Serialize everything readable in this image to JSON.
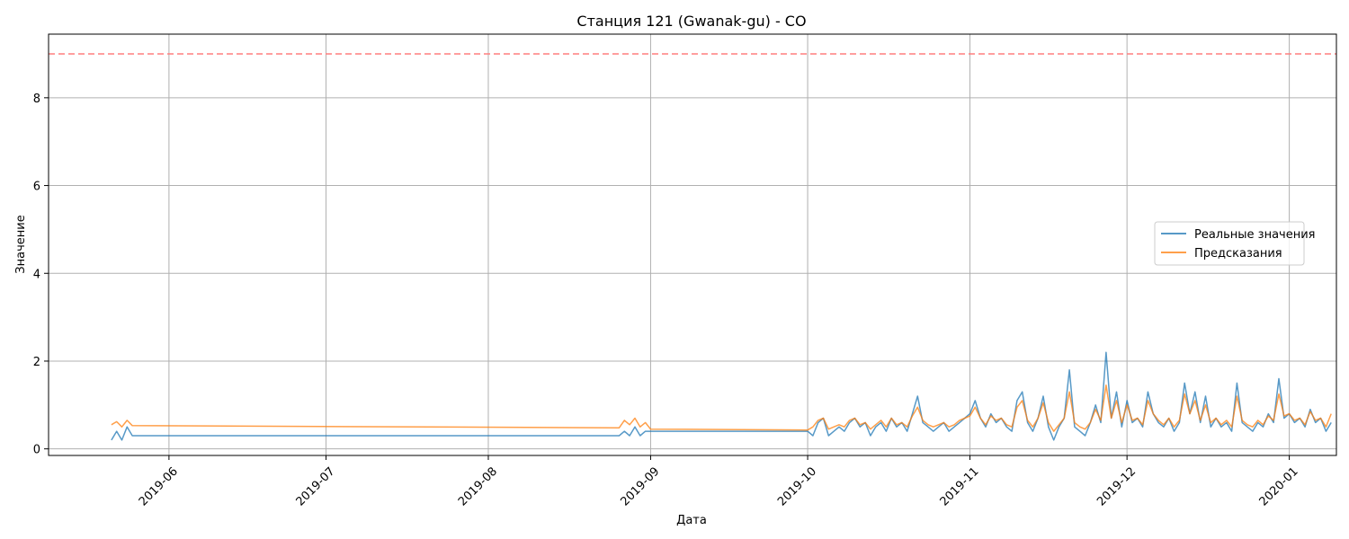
{
  "chart_data": {
    "type": "line",
    "title": "Станция 121 (Gwanak-gu) - CO",
    "xlabel": "Дата",
    "ylabel": "Значение",
    "x_range": [
      "2019-05-09",
      "2020-01-10"
    ],
    "ylim": [
      -0.15,
      9.45
    ],
    "grid": true,
    "legend_position": "center-right",
    "x_ticks": [
      "2019-06-01",
      "2019-07-01",
      "2019-08-01",
      "2019-09-01",
      "2019-10-01",
      "2019-11-01",
      "2019-12-01",
      "2020-01-01"
    ],
    "x_tick_labels": [
      "2019-06",
      "2019-07",
      "2019-08",
      "2019-09",
      "2019-10",
      "2019-11",
      "2019-12",
      "2020-01"
    ],
    "y_ticks": [
      0,
      2,
      4,
      6,
      8
    ],
    "y_tick_labels": [
      "0",
      "2",
      "4",
      "6",
      "8"
    ],
    "threshold": {
      "value": 9,
      "color": "#ff7f7f",
      "style": "dashed"
    },
    "series": [
      {
        "name": "Реальные значения",
        "color": "#1f77b4",
        "points": [
          [
            "2019-05-21",
            0.2
          ],
          [
            "2019-05-22",
            0.4
          ],
          [
            "2019-05-23",
            0.2
          ],
          [
            "2019-05-24",
            0.5
          ],
          [
            "2019-05-25",
            0.3
          ],
          [
            "2019-08-26",
            0.3
          ],
          [
            "2019-08-27",
            0.4
          ],
          [
            "2019-08-28",
            0.3
          ],
          [
            "2019-08-29",
            0.5
          ],
          [
            "2019-08-30",
            0.3
          ],
          [
            "2019-08-31",
            0.4
          ],
          [
            "2019-09-01",
            0.4
          ],
          [
            "2019-10-01",
            0.4
          ],
          [
            "2019-10-02",
            0.3
          ],
          [
            "2019-10-03",
            0.6
          ],
          [
            "2019-10-04",
            0.7
          ],
          [
            "2019-10-05",
            0.3
          ],
          [
            "2019-10-06",
            0.4
          ],
          [
            "2019-10-07",
            0.5
          ],
          [
            "2019-10-08",
            0.4
          ],
          [
            "2019-10-09",
            0.6
          ],
          [
            "2019-10-10",
            0.7
          ],
          [
            "2019-10-11",
            0.5
          ],
          [
            "2019-10-12",
            0.6
          ],
          [
            "2019-10-13",
            0.3
          ],
          [
            "2019-10-14",
            0.5
          ],
          [
            "2019-10-15",
            0.6
          ],
          [
            "2019-10-16",
            0.4
          ],
          [
            "2019-10-17",
            0.7
          ],
          [
            "2019-10-18",
            0.5
          ],
          [
            "2019-10-19",
            0.6
          ],
          [
            "2019-10-20",
            0.4
          ],
          [
            "2019-10-21",
            0.8
          ],
          [
            "2019-10-22",
            1.2
          ],
          [
            "2019-10-23",
            0.6
          ],
          [
            "2019-10-24",
            0.5
          ],
          [
            "2019-10-25",
            0.4
          ],
          [
            "2019-10-26",
            0.5
          ],
          [
            "2019-10-27",
            0.6
          ],
          [
            "2019-10-28",
            0.4
          ],
          [
            "2019-10-29",
            0.5
          ],
          [
            "2019-10-30",
            0.6
          ],
          [
            "2019-10-31",
            0.7
          ],
          [
            "2019-11-01",
            0.8
          ],
          [
            "2019-11-02",
            1.1
          ],
          [
            "2019-11-03",
            0.7
          ],
          [
            "2019-11-04",
            0.5
          ],
          [
            "2019-11-05",
            0.8
          ],
          [
            "2019-11-06",
            0.6
          ],
          [
            "2019-11-07",
            0.7
          ],
          [
            "2019-11-08",
            0.5
          ],
          [
            "2019-11-09",
            0.4
          ],
          [
            "2019-11-10",
            1.1
          ],
          [
            "2019-11-11",
            1.3
          ],
          [
            "2019-11-12",
            0.6
          ],
          [
            "2019-11-13",
            0.4
          ],
          [
            "2019-11-14",
            0.7
          ],
          [
            "2019-11-15",
            1.2
          ],
          [
            "2019-11-16",
            0.5
          ],
          [
            "2019-11-17",
            0.2
          ],
          [
            "2019-11-18",
            0.5
          ],
          [
            "2019-11-19",
            0.7
          ],
          [
            "2019-11-20",
            1.8
          ],
          [
            "2019-11-21",
            0.5
          ],
          [
            "2019-11-22",
            0.4
          ],
          [
            "2019-11-23",
            0.3
          ],
          [
            "2019-11-24",
            0.6
          ],
          [
            "2019-11-25",
            1.0
          ],
          [
            "2019-11-26",
            0.6
          ],
          [
            "2019-11-27",
            2.2
          ],
          [
            "2019-11-28",
            0.7
          ],
          [
            "2019-11-29",
            1.3
          ],
          [
            "2019-11-30",
            0.5
          ],
          [
            "2019-12-01",
            1.1
          ],
          [
            "2019-12-02",
            0.6
          ],
          [
            "2019-12-03",
            0.7
          ],
          [
            "2019-12-04",
            0.5
          ],
          [
            "2019-12-05",
            1.3
          ],
          [
            "2019-12-06",
            0.8
          ],
          [
            "2019-12-07",
            0.6
          ],
          [
            "2019-12-08",
            0.5
          ],
          [
            "2019-12-09",
            0.7
          ],
          [
            "2019-12-10",
            0.4
          ],
          [
            "2019-12-11",
            0.6
          ],
          [
            "2019-12-12",
            1.5
          ],
          [
            "2019-12-13",
            0.8
          ],
          [
            "2019-12-14",
            1.3
          ],
          [
            "2019-12-15",
            0.6
          ],
          [
            "2019-12-16",
            1.2
          ],
          [
            "2019-12-17",
            0.5
          ],
          [
            "2019-12-18",
            0.7
          ],
          [
            "2019-12-19",
            0.5
          ],
          [
            "2019-12-20",
            0.6
          ],
          [
            "2019-12-21",
            0.4
          ],
          [
            "2019-12-22",
            1.5
          ],
          [
            "2019-12-23",
            0.6
          ],
          [
            "2019-12-24",
            0.5
          ],
          [
            "2019-12-25",
            0.4
          ],
          [
            "2019-12-26",
            0.6
          ],
          [
            "2019-12-27",
            0.5
          ],
          [
            "2019-12-28",
            0.8
          ],
          [
            "2019-12-29",
            0.6
          ],
          [
            "2019-12-30",
            1.6
          ],
          [
            "2019-12-31",
            0.7
          ],
          [
            "2020-01-01",
            0.8
          ],
          [
            "2020-01-02",
            0.6
          ],
          [
            "2020-01-03",
            0.7
          ],
          [
            "2020-01-04",
            0.5
          ],
          [
            "2020-01-05",
            0.9
          ],
          [
            "2020-01-06",
            0.6
          ],
          [
            "2020-01-07",
            0.7
          ],
          [
            "2020-01-08",
            0.4
          ],
          [
            "2020-01-09",
            0.6
          ]
        ]
      },
      {
        "name": "Предсказания",
        "color": "#ff7f0e",
        "points": [
          [
            "2019-05-21",
            0.55
          ],
          [
            "2019-05-22",
            0.62
          ],
          [
            "2019-05-23",
            0.5
          ],
          [
            "2019-05-24",
            0.65
          ],
          [
            "2019-05-25",
            0.53
          ],
          [
            "2019-08-26",
            0.48
          ],
          [
            "2019-08-27",
            0.65
          ],
          [
            "2019-08-28",
            0.55
          ],
          [
            "2019-08-29",
            0.7
          ],
          [
            "2019-08-30",
            0.5
          ],
          [
            "2019-08-31",
            0.6
          ],
          [
            "2019-09-01",
            0.45
          ],
          [
            "2019-10-01",
            0.43
          ],
          [
            "2019-10-02",
            0.5
          ],
          [
            "2019-10-03",
            0.65
          ],
          [
            "2019-10-04",
            0.7
          ],
          [
            "2019-10-05",
            0.45
          ],
          [
            "2019-10-06",
            0.5
          ],
          [
            "2019-10-07",
            0.55
          ],
          [
            "2019-10-08",
            0.5
          ],
          [
            "2019-10-09",
            0.65
          ],
          [
            "2019-10-10",
            0.7
          ],
          [
            "2019-10-11",
            0.55
          ],
          [
            "2019-10-12",
            0.6
          ],
          [
            "2019-10-13",
            0.45
          ],
          [
            "2019-10-14",
            0.55
          ],
          [
            "2019-10-15",
            0.65
          ],
          [
            "2019-10-16",
            0.5
          ],
          [
            "2019-10-17",
            0.7
          ],
          [
            "2019-10-18",
            0.55
          ],
          [
            "2019-10-19",
            0.6
          ],
          [
            "2019-10-20",
            0.5
          ],
          [
            "2019-10-21",
            0.75
          ],
          [
            "2019-10-22",
            0.95
          ],
          [
            "2019-10-23",
            0.65
          ],
          [
            "2019-10-24",
            0.55
          ],
          [
            "2019-10-25",
            0.5
          ],
          [
            "2019-10-26",
            0.55
          ],
          [
            "2019-10-27",
            0.6
          ],
          [
            "2019-10-28",
            0.5
          ],
          [
            "2019-10-29",
            0.55
          ],
          [
            "2019-10-30",
            0.65
          ],
          [
            "2019-10-31",
            0.7
          ],
          [
            "2019-11-01",
            0.75
          ],
          [
            "2019-11-02",
            0.95
          ],
          [
            "2019-11-03",
            0.7
          ],
          [
            "2019-11-04",
            0.55
          ],
          [
            "2019-11-05",
            0.75
          ],
          [
            "2019-11-06",
            0.65
          ],
          [
            "2019-11-07",
            0.7
          ],
          [
            "2019-11-08",
            0.55
          ],
          [
            "2019-11-09",
            0.5
          ],
          [
            "2019-11-10",
            0.95
          ],
          [
            "2019-11-11",
            1.1
          ],
          [
            "2019-11-12",
            0.65
          ],
          [
            "2019-11-13",
            0.5
          ],
          [
            "2019-11-14",
            0.7
          ],
          [
            "2019-11-15",
            1.05
          ],
          [
            "2019-11-16",
            0.6
          ],
          [
            "2019-11-17",
            0.4
          ],
          [
            "2019-11-18",
            0.55
          ],
          [
            "2019-11-19",
            0.7
          ],
          [
            "2019-11-20",
            1.3
          ],
          [
            "2019-11-21",
            0.6
          ],
          [
            "2019-11-22",
            0.5
          ],
          [
            "2019-11-23",
            0.45
          ],
          [
            "2019-11-24",
            0.6
          ],
          [
            "2019-11-25",
            0.9
          ],
          [
            "2019-11-26",
            0.65
          ],
          [
            "2019-11-27",
            1.45
          ],
          [
            "2019-11-28",
            0.7
          ],
          [
            "2019-11-29",
            1.1
          ],
          [
            "2019-11-30",
            0.6
          ],
          [
            "2019-12-01",
            1.0
          ],
          [
            "2019-12-02",
            0.65
          ],
          [
            "2019-12-03",
            0.7
          ],
          [
            "2019-12-04",
            0.55
          ],
          [
            "2019-12-05",
            1.1
          ],
          [
            "2019-12-06",
            0.8
          ],
          [
            "2019-12-07",
            0.65
          ],
          [
            "2019-12-08",
            0.55
          ],
          [
            "2019-12-09",
            0.7
          ],
          [
            "2019-12-10",
            0.5
          ],
          [
            "2019-12-11",
            0.65
          ],
          [
            "2019-12-12",
            1.25
          ],
          [
            "2019-12-13",
            0.8
          ],
          [
            "2019-12-14",
            1.1
          ],
          [
            "2019-12-15",
            0.65
          ],
          [
            "2019-12-16",
            1.0
          ],
          [
            "2019-12-17",
            0.6
          ],
          [
            "2019-12-18",
            0.7
          ],
          [
            "2019-12-19",
            0.55
          ],
          [
            "2019-12-20",
            0.65
          ],
          [
            "2019-12-21",
            0.5
          ],
          [
            "2019-12-22",
            1.2
          ],
          [
            "2019-12-23",
            0.65
          ],
          [
            "2019-12-24",
            0.55
          ],
          [
            "2019-12-25",
            0.5
          ],
          [
            "2019-12-26",
            0.65
          ],
          [
            "2019-12-27",
            0.55
          ],
          [
            "2019-12-28",
            0.75
          ],
          [
            "2019-12-29",
            0.65
          ],
          [
            "2019-12-30",
            1.25
          ],
          [
            "2019-12-31",
            0.75
          ],
          [
            "2020-01-01",
            0.8
          ],
          [
            "2020-01-02",
            0.65
          ],
          [
            "2020-01-03",
            0.7
          ],
          [
            "2020-01-04",
            0.55
          ],
          [
            "2020-01-05",
            0.85
          ],
          [
            "2020-01-06",
            0.65
          ],
          [
            "2020-01-07",
            0.7
          ],
          [
            "2020-01-08",
            0.5
          ],
          [
            "2020-01-09",
            0.8
          ]
        ]
      }
    ]
  }
}
